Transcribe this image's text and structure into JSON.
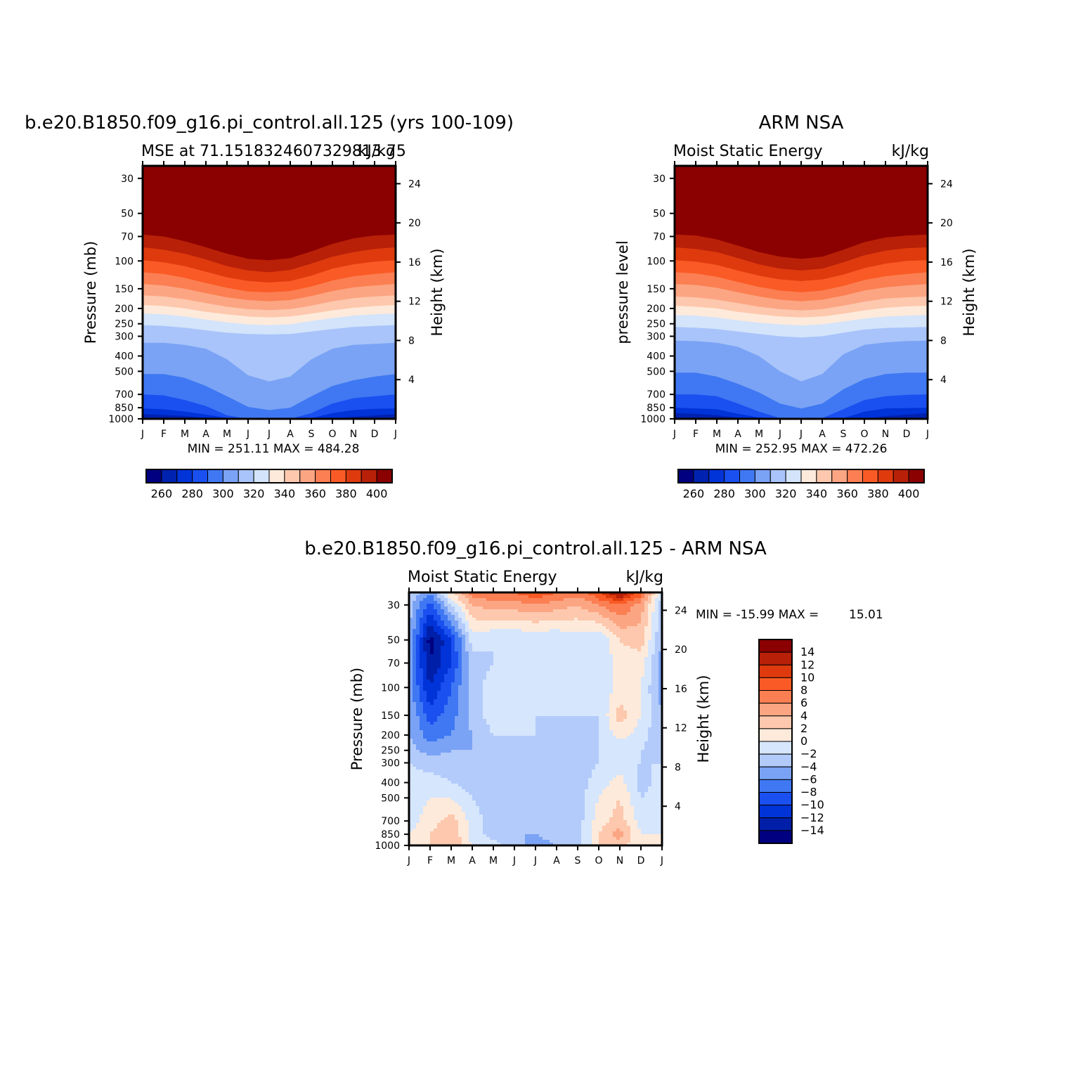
{
  "palette": {
    "mse": [
      "#000080",
      "#0022b0",
      "#0033d8",
      "#1a4ff0",
      "#3f78f2",
      "#7aa3f5",
      "#a8c4fa",
      "#d3e4fb",
      "#feeadb",
      "#fdc8ad",
      "#fca583",
      "#fb7f52",
      "#fa5a25",
      "#de3a0d",
      "#b82008",
      "#8b0000"
    ],
    "diff": [
      "#000080",
      "#001fa8",
      "#0033d8",
      "#1a4ff0",
      "#3f78f2",
      "#7aa3f5",
      "#b3cbfa",
      "#d5e6fd",
      "#feeadb",
      "#fdc8ad",
      "#fca583",
      "#fb7f52",
      "#fa5a25",
      "#de3a0d",
      "#b82008",
      "#8b0000"
    ]
  },
  "chart_data": [
    {
      "type": "heatmap",
      "title": "b.e20.B1850.f09_g16.pi_control.all.125 (yrs 100-109)",
      "subtitle_left": "MSE at 71.1518324607329813.75",
      "subtitle_right": "kJ/kg",
      "ylabel": "Pressure (mb)",
      "ylabel_right": "Height (km)",
      "x": [
        "J",
        "F",
        "M",
        "A",
        "M",
        "J",
        "J",
        "A",
        "S",
        "O",
        "N",
        "D",
        "J"
      ],
      "y_pressure": [
        30,
        50,
        70,
        100,
        150,
        200,
        250,
        300,
        400,
        500,
        700,
        850,
        1000
      ],
      "y_height": [
        24,
        20,
        16,
        12,
        8,
        4
      ],
      "ylim_pressure": [
        1000,
        25
      ],
      "stats": "MIN = 251.11 MAX = 484.28",
      "colorbar_levels": [
        260,
        280,
        300,
        320,
        340,
        360,
        380,
        400
      ],
      "contour_boundaries": {
        "levels": [
          255,
          265,
          275,
          285,
          295,
          305,
          315,
          325,
          335,
          345,
          355,
          365,
          375,
          385,
          395
        ],
        "pressure_at_level_by_month": [
          [
            1000,
            1000,
            1000,
            1000,
            1000,
            1000,
            1000,
            1000,
            1000,
            1000,
            1000,
            1000,
            1000
          ],
          [
            935,
            945,
            960,
            990,
            1000,
            1000,
            1000,
            1000,
            1000,
            1000,
            970,
            950,
            935
          ],
          [
            860,
            870,
            900,
            940,
            985,
            1000,
            1000,
            1000,
            990,
            920,
            880,
            865,
            860
          ],
          [
            700,
            710,
            760,
            830,
            950,
            1000,
            1000,
            1000,
            920,
            800,
            740,
            720,
            700
          ],
          [
            520,
            520,
            550,
            620,
            720,
            840,
            880,
            850,
            720,
            620,
            570,
            540,
            520
          ],
          [
            330,
            330,
            340,
            360,
            420,
            530,
            580,
            540,
            420,
            360,
            340,
            335,
            330
          ],
          [
            255,
            258,
            265,
            275,
            285,
            290,
            292,
            290,
            280,
            270,
            262,
            258,
            255
          ],
          [
            215,
            218,
            225,
            235,
            245,
            252,
            255,
            252,
            240,
            230,
            222,
            218,
            215
          ],
          [
            190,
            193,
            200,
            210,
            218,
            225,
            228,
            225,
            216,
            206,
            198,
            193,
            190
          ],
          [
            165,
            168,
            175,
            185,
            195,
            202,
            205,
            202,
            192,
            180,
            172,
            168,
            165
          ],
          [
            140,
            143,
            150,
            160,
            170,
            177,
            180,
            177,
            167,
            155,
            147,
            143,
            140
          ],
          [
            118,
            121,
            128,
            138,
            148,
            156,
            158,
            155,
            145,
            133,
            125,
            121,
            118
          ],
          [
            99,
            102,
            108,
            117,
            127,
            134,
            137,
            134,
            124,
            112,
            105,
            101,
            99
          ],
          [
            82,
            85,
            90,
            98,
            108,
            115,
            118,
            114,
            104,
            94,
            88,
            84,
            82
          ],
          [
            68,
            70,
            75,
            82,
            90,
            97,
            99,
            96,
            87,
            78,
            72,
            69,
            68
          ]
        ]
      }
    },
    {
      "type": "heatmap",
      "title": "ARM NSA",
      "subtitle_left": "Moist Static Energy",
      "subtitle_right": "kJ/kg",
      "ylabel": "pressure level",
      "ylabel_right": "Height (km)",
      "x": [
        "J",
        "F",
        "M",
        "A",
        "M",
        "J",
        "J",
        "A",
        "S",
        "O",
        "N",
        "D",
        "J"
      ],
      "y_pressure": [
        30,
        50,
        70,
        100,
        150,
        200,
        250,
        300,
        400,
        500,
        700,
        850,
        1000
      ],
      "y_height": [
        24,
        20,
        16,
        12,
        8,
        4
      ],
      "ylim_pressure": [
        1000,
        25
      ],
      "stats": "MIN = 252.95 MAX = 472.26",
      "colorbar_levels": [
        260,
        280,
        300,
        320,
        340,
        360,
        380,
        400
      ],
      "contour_boundaries": {
        "levels": [
          255,
          265,
          275,
          285,
          295,
          305,
          315,
          325,
          335,
          345,
          355,
          365,
          375,
          385,
          395
        ],
        "pressure_at_level_by_month": [
          [
            1000,
            1000,
            1000,
            1000,
            1000,
            1000,
            1000,
            1000,
            1000,
            1000,
            1000,
            1000,
            1000
          ],
          [
            920,
            930,
            950,
            985,
            1000,
            1000,
            1000,
            1000,
            1000,
            1000,
            960,
            940,
            920
          ],
          [
            850,
            860,
            870,
            930,
            980,
            1000,
            1000,
            1000,
            990,
            900,
            860,
            855,
            850
          ],
          [
            700,
            700,
            720,
            800,
            900,
            990,
            1000,
            990,
            870,
            760,
            720,
            705,
            700
          ],
          [
            510,
            510,
            540,
            600,
            680,
            800,
            860,
            800,
            650,
            560,
            520,
            510,
            510
          ],
          [
            320,
            322,
            330,
            350,
            400,
            500,
            580,
            520,
            390,
            340,
            328,
            322,
            320
          ],
          [
            262,
            265,
            270,
            280,
            290,
            300,
            305,
            300,
            285,
            272,
            266,
            264,
            262
          ],
          [
            220,
            222,
            228,
            238,
            246,
            252,
            256,
            252,
            242,
            232,
            225,
            222,
            220
          ],
          [
            192,
            195,
            200,
            210,
            218,
            225,
            228,
            225,
            216,
            206,
            198,
            194,
            192
          ],
          [
            168,
            170,
            176,
            185,
            195,
            202,
            206,
            202,
            192,
            181,
            173,
            170,
            168
          ],
          [
            140,
            142,
            148,
            158,
            168,
            176,
            180,
            176,
            166,
            154,
            147,
            143,
            140
          ],
          [
            118,
            120,
            126,
            136,
            146,
            154,
            158,
            154,
            144,
            132,
            125,
            121,
            118
          ],
          [
            99,
            101,
            106,
            115,
            124,
            131,
            134,
            131,
            122,
            111,
            104,
            100,
            99
          ],
          [
            82,
            84,
            88,
            96,
            105,
            112,
            115,
            112,
            102,
            92,
            86,
            83,
            82
          ],
          [
            68,
            69,
            73,
            80,
            88,
            94,
            97,
            94,
            85,
            76,
            71,
            69,
            68
          ]
        ]
      }
    },
    {
      "type": "heatmap",
      "title": "b.e20.B1850.f09_g16.pi_control.all.125 - ARM NSA",
      "subtitle_left": "Moist Static Energy",
      "subtitle_right": "kJ/kg",
      "ylabel": "Pressure (mb)",
      "ylabel_right": "Height (km)",
      "x": [
        "J",
        "F",
        "M",
        "A",
        "M",
        "J",
        "J",
        "A",
        "S",
        "O",
        "N",
        "D",
        "J"
      ],
      "y_pressure": [
        30,
        50,
        70,
        100,
        150,
        200,
        250,
        300,
        400,
        500,
        700,
        850,
        1000
      ],
      "y_height": [
        24,
        20,
        16,
        12,
        8,
        4
      ],
      "ylim_pressure": [
        1000,
        25
      ],
      "stats_label": "MIN = -15.99 MAX =",
      "stats_max": "15.01",
      "colorbar_levels": [
        14,
        12,
        10,
        8,
        6,
        4,
        2,
        0,
        -2,
        -4,
        -6,
        -8,
        -10,
        -12,
        -14
      ],
      "colorbar_text": [
        "14",
        "12",
        "10",
        "8",
        "6",
        "4",
        "2",
        "0",
        "−2",
        "−4",
        "−6",
        "−8",
        "−10",
        "−12",
        "−14"
      ],
      "values_by_month_by_pressure": {
        "pressure": [
          25,
          30,
          50,
          70,
          100,
          150,
          200,
          250,
          300,
          400,
          500,
          700,
          850,
          1000
        ],
        "rows": [
          [
            -2,
            -3,
            -4,
            -5,
            -5,
            -4,
            -4,
            -3,
            -2,
            -1,
            -1,
            -1,
            0,
            0
          ],
          [
            -6,
            -9,
            -15,
            -14,
            -12,
            -9,
            -7,
            -5,
            -3,
            -1,
            0,
            1,
            2,
            2
          ],
          [
            2,
            -2,
            -10,
            -10,
            -8,
            -7,
            -6,
            -4,
            -3,
            -2,
            0,
            3,
            4,
            4
          ],
          [
            7,
            4,
            -1,
            -3,
            -3,
            -3,
            -4,
            -4,
            -3,
            -3,
            -2,
            -1,
            -1,
            0
          ],
          [
            8,
            5,
            -2,
            -2,
            -1,
            -1,
            -2,
            -2,
            -2,
            -3,
            -3,
            -3,
            -3,
            -1
          ],
          [
            8,
            5,
            -2,
            -2,
            -1,
            -1,
            -2,
            -3,
            -3,
            -3,
            -3,
            -3,
            -4,
            -3
          ],
          [
            10,
            6,
            -2,
            -2,
            -2,
            -2,
            -2,
            -3,
            -3,
            -3,
            -3,
            -3,
            -4,
            -5
          ],
          [
            8,
            5,
            -2,
            -2,
            -1,
            -2,
            -3,
            -3,
            -3,
            -3,
            -3,
            -3,
            -3,
            -4
          ],
          [
            7,
            4,
            -1,
            -2,
            -2,
            -2,
            -4,
            -3,
            -3,
            -3,
            -3,
            -3,
            -3,
            -3
          ],
          [
            10,
            6,
            -2,
            -2,
            -2,
            -2,
            -2,
            -2,
            -2,
            -1,
            0,
            1,
            2,
            2
          ],
          [
            15,
            8,
            2,
            1,
            1,
            3,
            1,
            -2,
            -1,
            1,
            2,
            3,
            5,
            3
          ],
          [
            9,
            5,
            3,
            1,
            0,
            0,
            -1,
            -2,
            -2,
            -3,
            -2,
            -1,
            0,
            0
          ],
          [
            -2,
            -3,
            -4,
            -5,
            -5,
            -4,
            -4,
            -3,
            -2,
            -1,
            -1,
            -1,
            0,
            0
          ]
        ]
      }
    }
  ]
}
